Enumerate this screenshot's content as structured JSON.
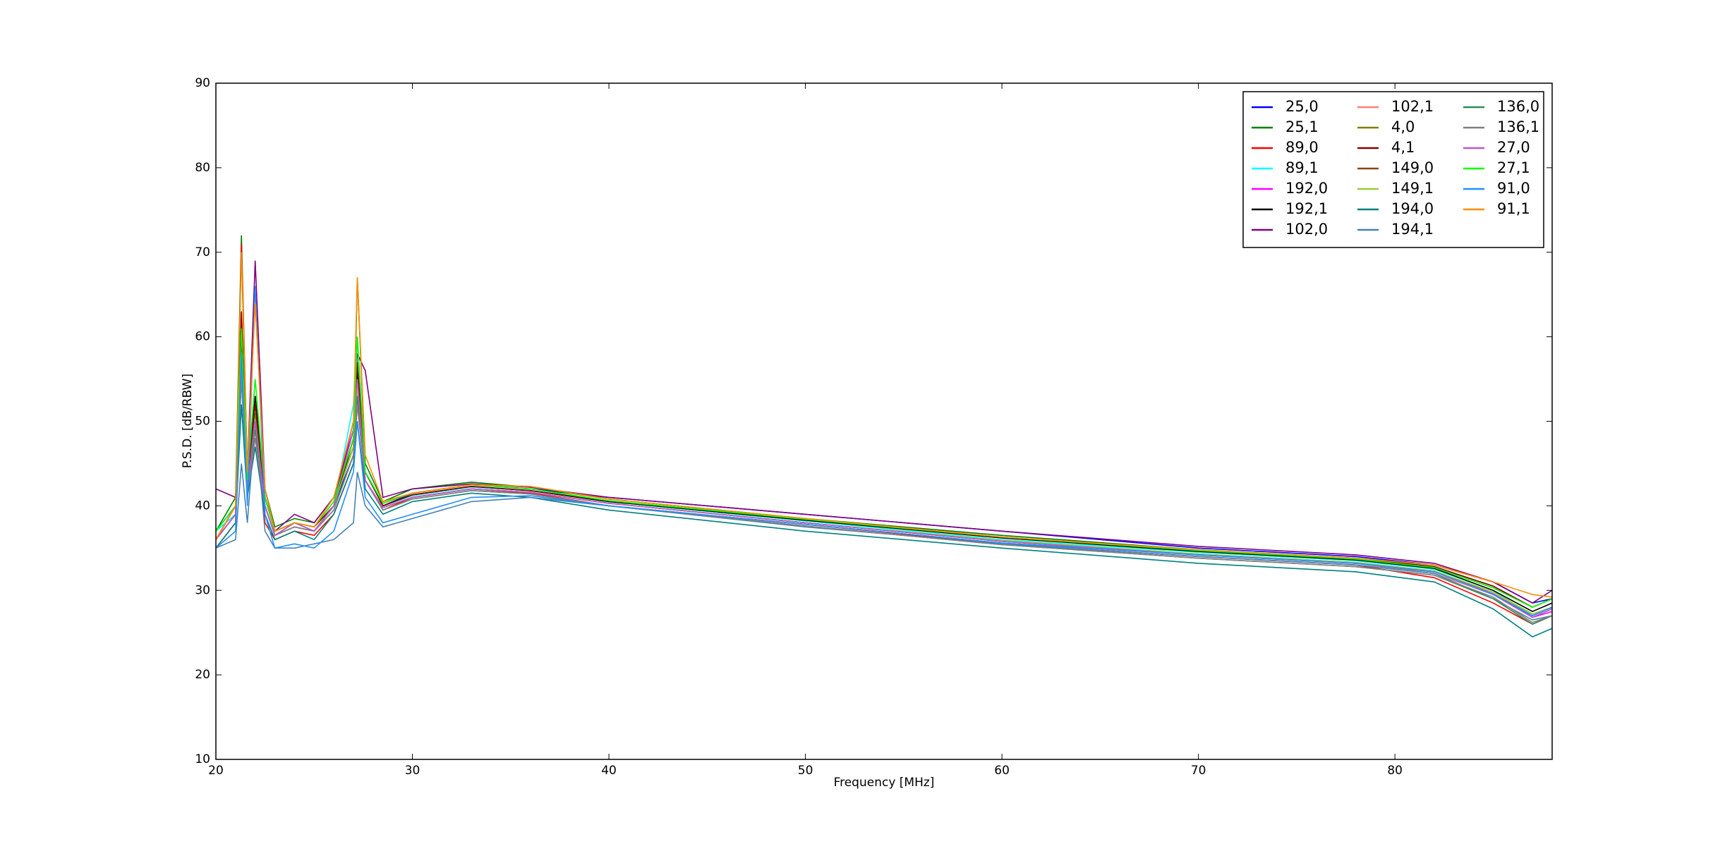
{
  "chart_data": {
    "type": "line",
    "x_label": "Frequency [MHz]",
    "y_label": "P.S.D. [dB/RBW]",
    "x": [
      20,
      21,
      21.3,
      21.6,
      22,
      22.5,
      23,
      24,
      25,
      26,
      27,
      27.2,
      27.6,
      28.5,
      30,
      33,
      36,
      40,
      50,
      60,
      70,
      78,
      82,
      85,
      87,
      88
    ],
    "xlim": [
      20,
      88
    ],
    "ylim": [
      10,
      90
    ],
    "xticks": [
      20,
      30,
      40,
      50,
      60,
      70,
      80
    ],
    "yticks": [
      10,
      20,
      30,
      40,
      50,
      60,
      70,
      80,
      90
    ],
    "grid": false,
    "legend": "upper right",
    "series": [
      {
        "name": "25,0",
        "color": "#0000ff",
        "values": [
          37,
          40,
          55,
          42,
          48,
          41,
          37,
          38,
          37,
          40,
          46,
          55,
          44,
          40,
          41.5,
          42.5,
          42,
          41,
          39,
          37,
          35,
          34,
          33,
          31,
          28.5,
          29
        ]
      },
      {
        "name": "25,1",
        "color": "#008000",
        "values": [
          37,
          41,
          72,
          44,
          52,
          42,
          37.5,
          38.5,
          38,
          41,
          47,
          67,
          45,
          40.5,
          42,
          42.8,
          42.2,
          40.8,
          38.5,
          36.5,
          34.8,
          33.8,
          32.8,
          30.5,
          28,
          29
        ]
      },
      {
        "name": "89,0",
        "color": "#ff0000",
        "values": [
          35,
          38,
          71,
          43,
          50,
          38,
          36,
          37,
          36.5,
          39,
          45,
          52,
          43,
          39.5,
          41,
          42,
          41.5,
          40,
          37.8,
          35.5,
          34,
          33,
          31.5,
          28.5,
          26,
          27
        ]
      },
      {
        "name": "89,1",
        "color": "#00ffff",
        "values": [
          37,
          39,
          60,
          43,
          51,
          41,
          37,
          38,
          37,
          40,
          52,
          60,
          44,
          40,
          41.2,
          42.2,
          41.8,
          40.5,
          38.2,
          36,
          34.5,
          33.5,
          32.5,
          30,
          27,
          28
        ]
      },
      {
        "name": "192,0",
        "color": "#ff00ff",
        "values": [
          36,
          39,
          58,
          42,
          49,
          40,
          36.5,
          37.5,
          37,
          40,
          50,
          53,
          43,
          39.8,
          41,
          42,
          41.6,
          40.3,
          38,
          35.8,
          34.3,
          33.3,
          32.3,
          29.5,
          26.8,
          27.5
        ]
      },
      {
        "name": "192,1",
        "color": "#000000",
        "values": [
          36,
          40,
          62,
          43,
          53,
          41,
          37,
          38,
          37.5,
          40,
          48,
          56,
          44,
          40,
          41.3,
          42.3,
          41.8,
          40.5,
          38.3,
          36.2,
          34.6,
          33.6,
          32.6,
          30,
          27.5,
          28.5
        ]
      },
      {
        "name": "102,0",
        "color": "#800080",
        "values": [
          42,
          41,
          60,
          44,
          69,
          42,
          37,
          39,
          38,
          41,
          49,
          58,
          56,
          41,
          42,
          42.6,
          42.2,
          41,
          39,
          37,
          35.2,
          34.2,
          33.2,
          31,
          28.5,
          30
        ]
      },
      {
        "name": "102,1",
        "color": "#fa8072",
        "values": [
          36,
          39,
          56,
          42,
          50,
          40,
          36.5,
          38,
          37,
          40,
          47,
          54,
          43,
          39.8,
          41,
          42,
          41.6,
          40.3,
          38,
          35.8,
          34.2,
          33.2,
          32,
          29.5,
          27,
          28
        ]
      },
      {
        "name": "4,0",
        "color": "#808000",
        "values": [
          36,
          39,
          57,
          42,
          51,
          40,
          36.5,
          38,
          37,
          40,
          47,
          55,
          43,
          39.8,
          41,
          42,
          41.6,
          40.3,
          38,
          35.8,
          34.2,
          33.2,
          32.2,
          29.8,
          27.2,
          28
        ]
      },
      {
        "name": "4,1",
        "color": "#8b0000",
        "values": [
          36,
          40,
          63,
          43,
          52,
          41,
          37,
          38,
          37.5,
          40,
          48,
          57,
          44,
          40,
          41.3,
          42.3,
          41.8,
          40.6,
          38.4,
          36.3,
          34.7,
          33.8,
          32.8,
          30.5,
          28,
          29
        ]
      },
      {
        "name": "149,0",
        "color": "#8b4513",
        "values": [
          36,
          39,
          58,
          42,
          50,
          40,
          36.5,
          38,
          37,
          40,
          47,
          55,
          43,
          39.8,
          41,
          42,
          41.6,
          40.3,
          38,
          35.8,
          34.2,
          33.2,
          32.2,
          29.6,
          27,
          28
        ]
      },
      {
        "name": "149,1",
        "color": "#9acd32",
        "values": [
          36,
          39,
          57,
          42,
          50,
          40,
          36.5,
          38,
          37,
          40,
          47,
          54,
          43,
          39.8,
          41,
          42,
          41.6,
          40.3,
          38,
          35.9,
          34.3,
          33.3,
          32.3,
          29.8,
          27.2,
          28
        ]
      },
      {
        "name": "194,0",
        "color": "#008080",
        "values": [
          35,
          38,
          52,
          41,
          47,
          39,
          36,
          37,
          36,
          39,
          45,
          50,
          42,
          39,
          40.5,
          41.5,
          41,
          39.5,
          37,
          35,
          33.2,
          32.2,
          31,
          27.8,
          24.5,
          25.5
        ]
      },
      {
        "name": "194,1",
        "color": "#4682b4",
        "values": [
          35,
          36,
          45,
          38,
          50,
          37,
          35,
          35,
          35.5,
          36,
          38,
          44,
          40,
          37.5,
          38.5,
          40.5,
          41,
          40,
          37.5,
          35.5,
          34,
          33,
          32,
          29,
          26.5,
          27
        ]
      },
      {
        "name": "136,0",
        "color": "#2e8b57",
        "values": [
          36,
          39,
          56,
          42,
          49,
          40,
          36.5,
          37.5,
          37,
          39.5,
          46,
          53,
          43,
          39.5,
          40.8,
          41.8,
          41.4,
          40,
          37.6,
          35.4,
          33.8,
          32.8,
          31.8,
          29,
          26,
          27
        ]
      },
      {
        "name": "136,1",
        "color": "#808080",
        "values": [
          36,
          39,
          55,
          42,
          48,
          40,
          36.5,
          37.5,
          37,
          39.5,
          46,
          52,
          43,
          39.5,
          40.8,
          41.8,
          41.4,
          40,
          37.6,
          35.4,
          33.8,
          32.8,
          31.8,
          29.2,
          26.2,
          27
        ]
      },
      {
        "name": "27,0",
        "color": "#ba55d3",
        "values": [
          36,
          39,
          57,
          42,
          50,
          40,
          36.5,
          38,
          37,
          40,
          49,
          55,
          43,
          39.8,
          41,
          42,
          41.6,
          40.3,
          38,
          35.8,
          34.2,
          33.2,
          32.2,
          29.6,
          26.8,
          27.8
        ]
      },
      {
        "name": "27,1",
        "color": "#00ff00",
        "values": [
          37,
          40,
          61,
          43,
          55,
          41,
          37,
          38,
          37.5,
          40.5,
          48,
          60,
          44,
          40.3,
          41.5,
          42.5,
          42,
          40.6,
          38.4,
          36.3,
          34.7,
          33.7,
          32.7,
          30.3,
          28,
          29
        ]
      },
      {
        "name": "91,0",
        "color": "#1e90ff",
        "values": [
          35,
          37,
          58,
          40,
          66,
          39,
          35,
          35.5,
          35,
          37,
          44,
          50,
          41,
          38,
          39,
          41,
          41.2,
          40,
          37.8,
          35.6,
          34.2,
          33.2,
          32.2,
          29.5,
          27,
          28
        ]
      },
      {
        "name": "91,1",
        "color": "#ff8c00",
        "values": [
          36,
          40,
          70,
          44,
          64,
          42,
          37,
          38,
          37.5,
          41,
          50,
          67,
          46,
          40.5,
          41.5,
          42.5,
          42.3,
          40.8,
          38.5,
          36.3,
          34.8,
          33.8,
          33,
          31,
          29.5,
          29.2
        ]
      }
    ]
  }
}
